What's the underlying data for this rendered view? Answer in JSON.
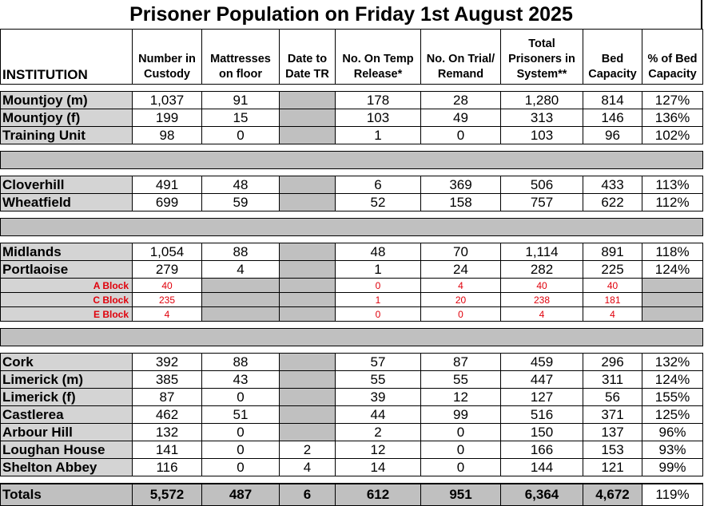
{
  "title": "Prisoner Population on Friday 1st August 2025",
  "headers": {
    "institution": "INSTITUTION",
    "custody": "Number in Custody",
    "mattresses": "Mattresses on floor",
    "dtdtr": "Date to Date TR",
    "temp": "No. On Temp Release*",
    "trial": "No. On Trial/ Remand",
    "total": "Total Prisoners in System**",
    "bed": "Bed Capacity",
    "pct": "% of Bed Capacity"
  },
  "groups": [
    {
      "rows": [
        {
          "name": "Mountjoy (m)",
          "custody": "1,037",
          "mattresses": "91",
          "dtdtr": "",
          "temp": "178",
          "trial": "28",
          "total": "1,280",
          "bed": "814",
          "pct": "127%"
        },
        {
          "name": "Mountjoy (f)",
          "custody": "199",
          "mattresses": "15",
          "dtdtr": "",
          "temp": "103",
          "trial": "49",
          "total": "313",
          "bed": "146",
          "pct": "136%"
        },
        {
          "name": "Training Unit",
          "custody": "98",
          "mattresses": "0",
          "dtdtr": "",
          "temp": "1",
          "trial": "0",
          "total": "103",
          "bed": "96",
          "pct": "102%"
        }
      ]
    },
    {
      "rows": [
        {
          "name": "Cloverhill",
          "custody": "491",
          "mattresses": "48",
          "dtdtr": "",
          "temp": "6",
          "trial": "369",
          "total": "506",
          "bed": "433",
          "pct": "113%"
        },
        {
          "name": "Wheatfield",
          "custody": "699",
          "mattresses": "59",
          "dtdtr": "",
          "temp": "52",
          "trial": "158",
          "total": "757",
          "bed": "622",
          "pct": "112%"
        }
      ]
    },
    {
      "rows": [
        {
          "name": "Midlands",
          "custody": "1,054",
          "mattresses": "88",
          "dtdtr": "",
          "temp": "48",
          "trial": "70",
          "total": "1,114",
          "bed": "891",
          "pct": "118%"
        },
        {
          "name": "Portlaoise",
          "custody": "279",
          "mattresses": "4",
          "dtdtr": "",
          "temp": "1",
          "trial": "24",
          "total": "282",
          "bed": "225",
          "pct": "124%"
        }
      ],
      "subrows": [
        {
          "name": "A Block",
          "custody": "40",
          "temp": "0",
          "trial": "4",
          "total": "40",
          "bed": "40"
        },
        {
          "name": "C Block",
          "custody": "235",
          "temp": "1",
          "trial": "20",
          "total": "238",
          "bed": "181"
        },
        {
          "name": "E Block",
          "custody": "4",
          "temp": "0",
          "trial": "0",
          "total": "4",
          "bed": "4"
        }
      ]
    },
    {
      "rows": [
        {
          "name": "Cork",
          "custody": "392",
          "mattresses": "88",
          "dtdtr": "",
          "temp": "57",
          "trial": "87",
          "total": "459",
          "bed": "296",
          "pct": "132%"
        },
        {
          "name": "Limerick (m)",
          "custody": "385",
          "mattresses": "43",
          "dtdtr": "",
          "temp": "55",
          "trial": "55",
          "total": "447",
          "bed": "311",
          "pct": "124%"
        },
        {
          "name": "Limerick (f)",
          "custody": "87",
          "mattresses": "0",
          "dtdtr": "",
          "temp": "39",
          "trial": "12",
          "total": "127",
          "bed": "56",
          "pct": "155%"
        },
        {
          "name": "Castlerea",
          "custody": "462",
          "mattresses": "51",
          "dtdtr": "",
          "temp": "44",
          "trial": "99",
          "total": "516",
          "bed": "371",
          "pct": "125%"
        },
        {
          "name": "Arbour Hill",
          "custody": "132",
          "mattresses": "0",
          "dtdtr": "",
          "temp": "2",
          "trial": "0",
          "total": "150",
          "bed": "137",
          "pct": "96%"
        },
        {
          "name": "Loughan House",
          "custody": "141",
          "mattresses": "0",
          "dtdtr": "2",
          "temp": "12",
          "trial": "0",
          "total": "166",
          "bed": "153",
          "pct": "93%"
        },
        {
          "name": "Shelton Abbey",
          "custody": "116",
          "mattresses": "0",
          "dtdtr": "4",
          "temp": "14",
          "trial": "0",
          "total": "144",
          "bed": "121",
          "pct": "99%"
        }
      ]
    }
  ],
  "totals": {
    "name": "Totals",
    "custody": "5,572",
    "mattresses": "487",
    "dtdtr": "6",
    "temp": "612",
    "trial": "951",
    "total": "6,364",
    "bed": "4,672",
    "pct": "119%"
  }
}
